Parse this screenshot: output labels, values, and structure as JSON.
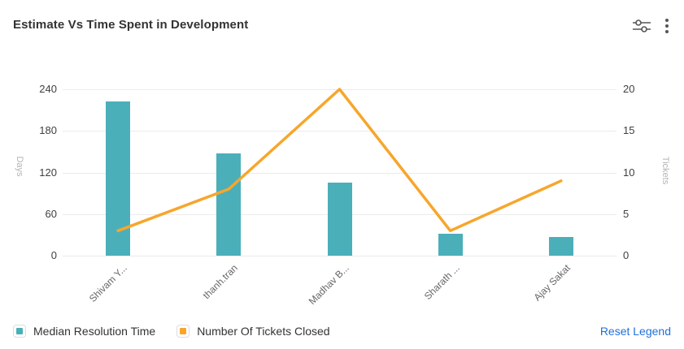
{
  "header": {
    "title": "Estimate Vs Time Spent in Development",
    "filters_icon": "sliders-icon",
    "menu_icon": "kebab-menu-icon"
  },
  "chart_data": {
    "type": "combo-bar-line",
    "title": "Estimate Vs Time Spent in Development",
    "categories": [
      "Shivam Y...",
      "thanh.tran",
      "Madhav B...",
      "Sharath ...",
      "Ajay Sakat"
    ],
    "series": [
      {
        "name": "Median Resolution Time",
        "type": "bar",
        "axis": "left",
        "color": "#4BAFBA",
        "values": [
          222,
          148,
          105,
          32,
          27
        ]
      },
      {
        "name": "Number Of Tickets Closed",
        "type": "line",
        "axis": "right",
        "color": "#F7A62B",
        "values": [
          3,
          8,
          20,
          3,
          9
        ]
      }
    ],
    "left_axis": {
      "label": "Days",
      "ticks": [
        0,
        60,
        120,
        180,
        240
      ],
      "max": 240
    },
    "right_axis": {
      "label": "Tickets",
      "ticks": [
        0,
        5,
        10,
        15,
        20
      ],
      "max": 20
    },
    "grid": true,
    "legend_position": "bottom"
  },
  "legend": {
    "items": [
      {
        "label": "Median Resolution Time",
        "color": "#4BAFBA"
      },
      {
        "label": "Number Of Tickets Closed",
        "color": "#F7A62B"
      }
    ],
    "reset_label": "Reset Legend"
  },
  "colors": {
    "bar": "#4BAFBA",
    "line": "#F7A62B",
    "grid": "#ebebeb",
    "tick_text": "#404040",
    "axis_name_text": "#b3b3b3",
    "x_label_text": "#666666",
    "link": "#2270DB",
    "icon": "#555555"
  }
}
